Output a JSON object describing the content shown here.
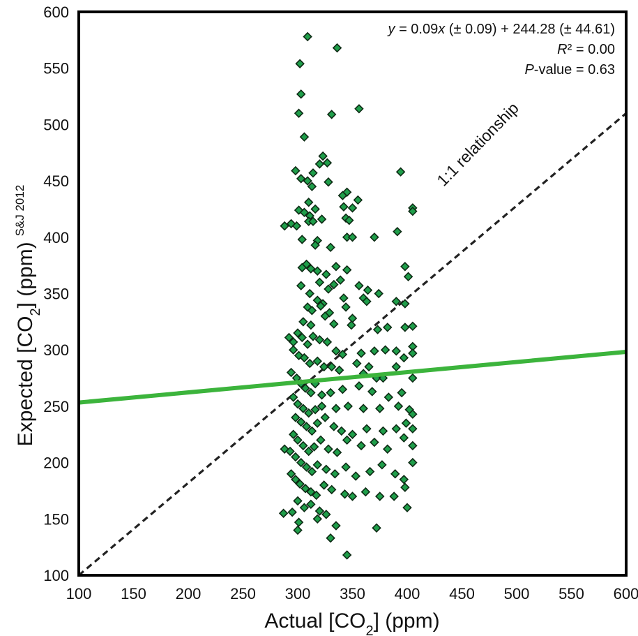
{
  "chart_data": {
    "type": "scatter",
    "title": "",
    "xlabel": "Actual [CO2] (ppm)",
    "ylabel": "Expected [CO2] (ppm)",
    "ylabel_superscript": "S&J 2012",
    "xlim": [
      100,
      600
    ],
    "ylim": [
      100,
      600
    ],
    "xticks": [
      100,
      150,
      200,
      250,
      300,
      350,
      400,
      450,
      500,
      550,
      600
    ],
    "yticks": [
      100,
      150,
      200,
      250,
      300,
      350,
      400,
      450,
      500,
      550,
      600
    ],
    "grid": false,
    "colors": {
      "marker_fill": "#1f9e4a",
      "marker_edge": "#0d2a14",
      "regression": "#3cb43c",
      "identity_line": "#222222",
      "frame": "#000000"
    },
    "annotations": {
      "equation": "y = 0.09x (± 0.09) + 244.28 (± 44.61)",
      "r_squared": "R² = 0.00",
      "p_value": "P-value = 0.63",
      "identity_label": "1:1 relationship"
    },
    "regression": {
      "slope": 0.09,
      "intercept": 244.28,
      "x_range": [
        100,
        600
      ]
    },
    "identity_line": {
      "x_range": [
        100,
        600
      ]
    },
    "series": [
      {
        "points": [
          [
            309,
            578
          ],
          [
            336,
            568
          ],
          [
            302,
            554
          ],
          [
            356,
            514
          ],
          [
            303,
            527
          ],
          [
            301,
            510
          ],
          [
            331,
            509
          ],
          [
            306,
            489
          ],
          [
            323,
            472
          ],
          [
            327,
            466
          ],
          [
            320,
            465
          ],
          [
            298,
            459
          ],
          [
            394,
            458
          ],
          [
            314,
            457
          ],
          [
            303,
            452
          ],
          [
            309,
            450
          ],
          [
            313,
            445
          ],
          [
            328,
            449
          ],
          [
            345,
            440
          ],
          [
            341,
            437
          ],
          [
            310,
            431
          ],
          [
            355,
            433
          ],
          [
            316,
            425
          ],
          [
            301,
            424
          ],
          [
            306,
            422
          ],
          [
            311,
            419
          ],
          [
            342,
            427
          ],
          [
            350,
            426
          ],
          [
            405,
            426
          ],
          [
            405,
            423
          ],
          [
            288,
            410
          ],
          [
            294,
            412
          ],
          [
            299,
            410
          ],
          [
            310,
            414
          ],
          [
            314,
            414
          ],
          [
            322,
            416
          ],
          [
            344,
            417
          ],
          [
            347,
            415
          ],
          [
            391,
            405
          ],
          [
            304,
            398
          ],
          [
            318,
            397
          ],
          [
            316,
            393
          ],
          [
            330,
            391
          ],
          [
            345,
            400
          ],
          [
            350,
            400
          ],
          [
            370,
            400
          ],
          [
            308,
            376
          ],
          [
            304,
            373
          ],
          [
            312,
            372
          ],
          [
            318,
            370
          ],
          [
            335,
            374
          ],
          [
            345,
            371
          ],
          [
            398,
            374
          ],
          [
            320,
            360
          ],
          [
            326,
            367
          ],
          [
            333,
            358
          ],
          [
            339,
            362
          ],
          [
            356,
            357
          ],
          [
            364,
            353
          ],
          [
            374,
            350
          ],
          [
            401,
            365
          ],
          [
            303,
            357
          ],
          [
            311,
            350
          ],
          [
            318,
            344
          ],
          [
            323,
            341
          ],
          [
            328,
            354
          ],
          [
            342,
            346
          ],
          [
            360,
            346
          ],
          [
            363,
            343
          ],
          [
            390,
            343
          ],
          [
            398,
            341
          ],
          [
            309,
            338
          ],
          [
            313,
            335
          ],
          [
            321,
            339
          ],
          [
            329,
            333
          ],
          [
            344,
            338
          ],
          [
            350,
            328
          ],
          [
            305,
            325
          ],
          [
            312,
            322
          ],
          [
            325,
            330
          ],
          [
            333,
            323
          ],
          [
            349,
            322
          ],
          [
            373,
            318
          ],
          [
            382,
            320
          ],
          [
            398,
            320
          ],
          [
            405,
            321
          ],
          [
            292,
            311
          ],
          [
            296,
            307
          ],
          [
            300,
            315
          ],
          [
            304,
            311
          ],
          [
            309,
            305
          ],
          [
            314,
            312
          ],
          [
            320,
            309
          ],
          [
            327,
            307
          ],
          [
            335,
            299
          ],
          [
            341,
            296
          ],
          [
            358,
            297
          ],
          [
            370,
            299
          ],
          [
            380,
            300
          ],
          [
            390,
            299
          ],
          [
            405,
            303
          ],
          [
            296,
            300
          ],
          [
            301,
            295
          ],
          [
            306,
            293
          ],
          [
            311,
            288
          ],
          [
            318,
            290
          ],
          [
            324,
            285
          ],
          [
            331,
            285
          ],
          [
            338,
            282
          ],
          [
            354,
            288
          ],
          [
            360,
            279
          ],
          [
            365,
            285
          ],
          [
            372,
            275
          ],
          [
            378,
            275
          ],
          [
            390,
            285
          ],
          [
            397,
            293
          ],
          [
            405,
            297
          ],
          [
            294,
            280
          ],
          [
            299,
            275
          ],
          [
            303,
            270
          ],
          [
            307,
            266
          ],
          [
            312,
            262
          ],
          [
            316,
            270
          ],
          [
            322,
            260
          ],
          [
            330,
            262
          ],
          [
            341,
            265
          ],
          [
            356,
            268
          ],
          [
            368,
            263
          ],
          [
            383,
            258
          ],
          [
            395,
            262
          ],
          [
            405,
            275
          ],
          [
            296,
            258
          ],
          [
            300,
            252
          ],
          [
            305,
            248
          ],
          [
            310,
            244
          ],
          [
            316,
            247
          ],
          [
            322,
            250
          ],
          [
            335,
            248
          ],
          [
            346,
            250
          ],
          [
            360,
            248
          ],
          [
            375,
            248
          ],
          [
            392,
            250
          ],
          [
            402,
            247
          ],
          [
            405,
            243
          ],
          [
            298,
            240
          ],
          [
            303,
            236
          ],
          [
            308,
            232
          ],
          [
            313,
            228
          ],
          [
            318,
            235
          ],
          [
            325,
            240
          ],
          [
            333,
            232
          ],
          [
            340,
            228
          ],
          [
            350,
            225
          ],
          [
            363,
            230
          ],
          [
            378,
            228
          ],
          [
            390,
            230
          ],
          [
            399,
            235
          ],
          [
            405,
            230
          ],
          [
            296,
            225
          ],
          [
            300,
            220
          ],
          [
            305,
            215
          ],
          [
            310,
            210
          ],
          [
            315,
            214
          ],
          [
            321,
            220
          ],
          [
            328,
            212
          ],
          [
            336,
            209
          ],
          [
            345,
            220
          ],
          [
            358,
            215
          ],
          [
            370,
            218
          ],
          [
            382,
            212
          ],
          [
            397,
            222
          ],
          [
            405,
            215
          ],
          [
            288,
            212
          ],
          [
            293,
            210
          ],
          [
            298,
            205
          ],
          [
            303,
            200
          ],
          [
            308,
            196
          ],
          [
            313,
            192
          ],
          [
            318,
            198
          ],
          [
            326,
            194
          ],
          [
            334,
            190
          ],
          [
            344,
            196
          ],
          [
            353,
            188
          ],
          [
            366,
            192
          ],
          [
            377,
            198
          ],
          [
            389,
            190
          ],
          [
            397,
            185
          ],
          [
            405,
            200
          ],
          [
            294,
            190
          ],
          [
            298,
            185
          ],
          [
            302,
            181
          ],
          [
            307,
            177
          ],
          [
            312,
            174
          ],
          [
            317,
            171
          ],
          [
            324,
            180
          ],
          [
            331,
            176
          ],
          [
            343,
            172
          ],
          [
            350,
            170
          ],
          [
            362,
            174
          ],
          [
            375,
            170
          ],
          [
            388,
            170
          ],
          [
            398,
            178
          ],
          [
            300,
            166
          ],
          [
            306,
            160
          ],
          [
            312,
            163
          ],
          [
            320,
            157
          ],
          [
            326,
            154
          ],
          [
            287,
            155
          ],
          [
            295,
            156
          ],
          [
            301,
            147
          ],
          [
            318,
            150
          ],
          [
            335,
            144
          ],
          [
            300,
            140
          ],
          [
            330,
            133
          ],
          [
            372,
            142
          ],
          [
            400,
            160
          ],
          [
            345,
            118
          ]
        ]
      }
    ]
  }
}
